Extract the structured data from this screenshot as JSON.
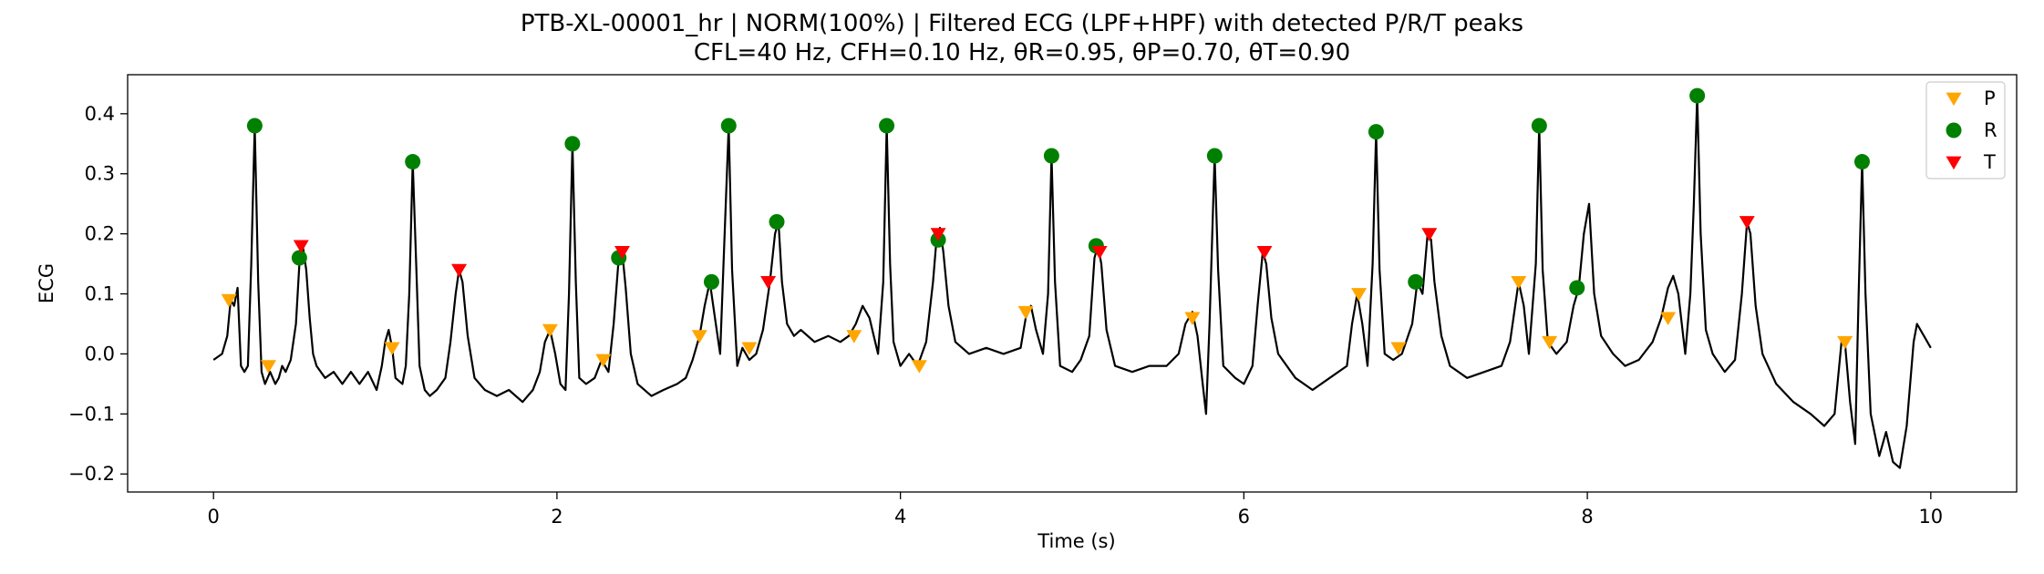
{
  "chart_data": {
    "type": "line",
    "title": "PTB-XL-00001_hr | NORM(100%) | Filtered ECG (LPF+HPF) with detected P/R/T peaks",
    "subtitle": "CFL=40 Hz, CFH=0.10 Hz, θR=0.95, θP=0.70, θT=0.90",
    "xlabel": "Time (s)",
    "ylabel": "ECG",
    "xlim": [
      -0.5,
      10.5
    ],
    "ylim": [
      -0.23,
      0.465
    ],
    "xticks": [
      0,
      2,
      4,
      6,
      8,
      10
    ],
    "yticks": [
      -0.2,
      -0.1,
      0.0,
      0.1,
      0.2,
      0.3,
      0.4
    ],
    "xtick_labels": [
      "0",
      "2",
      "4",
      "6",
      "8",
      "10"
    ],
    "ytick_labels": [
      "−0.2",
      "−0.1",
      "0.0",
      "0.1",
      "0.2",
      "0.3",
      "0.4"
    ],
    "grid": false,
    "legend_position": "top-right",
    "ecg_color": "#000000",
    "ecg": [
      [
        0.0,
        -0.01
      ],
      [
        0.05,
        0.0
      ],
      [
        0.08,
        0.03
      ],
      [
        0.1,
        0.09
      ],
      [
        0.12,
        0.08
      ],
      [
        0.14,
        0.11
      ],
      [
        0.16,
        -0.02
      ],
      [
        0.18,
        -0.03
      ],
      [
        0.2,
        -0.02
      ],
      [
        0.22,
        0.15
      ],
      [
        0.24,
        0.38
      ],
      [
        0.26,
        0.12
      ],
      [
        0.28,
        -0.03
      ],
      [
        0.3,
        -0.05
      ],
      [
        0.33,
        -0.03
      ],
      [
        0.36,
        -0.05
      ],
      [
        0.38,
        -0.04
      ],
      [
        0.4,
        -0.02
      ],
      [
        0.42,
        -0.03
      ],
      [
        0.45,
        -0.01
      ],
      [
        0.48,
        0.05
      ],
      [
        0.5,
        0.15
      ],
      [
        0.52,
        0.18
      ],
      [
        0.54,
        0.14
      ],
      [
        0.56,
        0.06
      ],
      [
        0.58,
        0.0
      ],
      [
        0.6,
        -0.02
      ],
      [
        0.65,
        -0.04
      ],
      [
        0.7,
        -0.03
      ],
      [
        0.75,
        -0.05
      ],
      [
        0.8,
        -0.03
      ],
      [
        0.85,
        -0.05
      ],
      [
        0.9,
        -0.03
      ],
      [
        0.95,
        -0.06
      ],
      [
        0.98,
        -0.02
      ],
      [
        1.0,
        0.02
      ],
      [
        1.02,
        0.04
      ],
      [
        1.04,
        0.01
      ],
      [
        1.06,
        -0.04
      ],
      [
        1.1,
        -0.05
      ],
      [
        1.12,
        -0.02
      ],
      [
        1.14,
        0.1
      ],
      [
        1.16,
        0.32
      ],
      [
        1.18,
        0.15
      ],
      [
        1.2,
        -0.02
      ],
      [
        1.23,
        -0.06
      ],
      [
        1.26,
        -0.07
      ],
      [
        1.3,
        -0.06
      ],
      [
        1.35,
        -0.04
      ],
      [
        1.38,
        0.02
      ],
      [
        1.41,
        0.1
      ],
      [
        1.43,
        0.14
      ],
      [
        1.45,
        0.12
      ],
      [
        1.48,
        0.03
      ],
      [
        1.52,
        -0.04
      ],
      [
        1.58,
        -0.06
      ],
      [
        1.65,
        -0.07
      ],
      [
        1.72,
        -0.06
      ],
      [
        1.8,
        -0.08
      ],
      [
        1.86,
        -0.06
      ],
      [
        1.9,
        -0.03
      ],
      [
        1.93,
        0.02
      ],
      [
        1.96,
        0.04
      ],
      [
        1.99,
        0.0
      ],
      [
        2.02,
        -0.05
      ],
      [
        2.05,
        -0.06
      ],
      [
        2.07,
        0.1
      ],
      [
        2.09,
        0.35
      ],
      [
        2.11,
        0.12
      ],
      [
        2.13,
        -0.04
      ],
      [
        2.17,
        -0.05
      ],
      [
        2.22,
        -0.04
      ],
      [
        2.26,
        -0.01
      ],
      [
        2.3,
        -0.03
      ],
      [
        2.33,
        0.05
      ],
      [
        2.36,
        0.16
      ],
      [
        2.38,
        0.17
      ],
      [
        2.4,
        0.11
      ],
      [
        2.43,
        0.0
      ],
      [
        2.47,
        -0.05
      ],
      [
        2.55,
        -0.07
      ],
      [
        2.62,
        -0.06
      ],
      [
        2.7,
        -0.05
      ],
      [
        2.75,
        -0.04
      ],
      [
        2.79,
        -0.01
      ],
      [
        2.83,
        0.03
      ],
      [
        2.86,
        0.08
      ],
      [
        2.89,
        0.12
      ],
      [
        2.92,
        0.06
      ],
      [
        2.95,
        0.0
      ],
      [
        2.97,
        0.15
      ],
      [
        3.0,
        0.38
      ],
      [
        3.02,
        0.14
      ],
      [
        3.05,
        -0.02
      ],
      [
        3.08,
        0.01
      ],
      [
        3.12,
        -0.01
      ],
      [
        3.16,
        0.0
      ],
      [
        3.2,
        0.04
      ],
      [
        3.24,
        0.12
      ],
      [
        3.27,
        0.2
      ],
      [
        3.29,
        0.22
      ],
      [
        3.31,
        0.12
      ],
      [
        3.34,
        0.05
      ],
      [
        3.38,
        0.03
      ],
      [
        3.42,
        0.04
      ],
      [
        3.5,
        0.02
      ],
      [
        3.58,
        0.03
      ],
      [
        3.65,
        0.02
      ],
      [
        3.7,
        0.03
      ],
      [
        3.74,
        0.05
      ],
      [
        3.78,
        0.08
      ],
      [
        3.82,
        0.06
      ],
      [
        3.87,
        0.0
      ],
      [
        3.9,
        0.12
      ],
      [
        3.92,
        0.38
      ],
      [
        3.94,
        0.15
      ],
      [
        3.96,
        0.02
      ],
      [
        4.0,
        -0.02
      ],
      [
        4.05,
        0.0
      ],
      [
        4.1,
        -0.02
      ],
      [
        4.15,
        0.02
      ],
      [
        4.19,
        0.12
      ],
      [
        4.21,
        0.19
      ],
      [
        4.23,
        0.21
      ],
      [
        4.25,
        0.17
      ],
      [
        4.28,
        0.08
      ],
      [
        4.32,
        0.02
      ],
      [
        4.4,
        0.0
      ],
      [
        4.5,
        0.01
      ],
      [
        4.6,
        0.0
      ],
      [
        4.7,
        0.01
      ],
      [
        4.73,
        0.06
      ],
      [
        4.76,
        0.08
      ],
      [
        4.79,
        0.04
      ],
      [
        4.83,
        0.0
      ],
      [
        4.86,
        0.1
      ],
      [
        4.88,
        0.33
      ],
      [
        4.9,
        0.12
      ],
      [
        4.93,
        -0.02
      ],
      [
        5.0,
        -0.03
      ],
      [
        5.05,
        -0.01
      ],
      [
        5.1,
        0.03
      ],
      [
        5.13,
        0.16
      ],
      [
        5.15,
        0.18
      ],
      [
        5.17,
        0.15
      ],
      [
        5.2,
        0.04
      ],
      [
        5.25,
        -0.02
      ],
      [
        5.35,
        -0.03
      ],
      [
        5.45,
        -0.02
      ],
      [
        5.55,
        -0.02
      ],
      [
        5.62,
        0.0
      ],
      [
        5.66,
        0.05
      ],
      [
        5.7,
        0.07
      ],
      [
        5.73,
        0.03
      ],
      [
        5.76,
        -0.05
      ],
      [
        5.78,
        -0.1
      ],
      [
        5.8,
        0.05
      ],
      [
        5.83,
        0.33
      ],
      [
        5.85,
        0.14
      ],
      [
        5.88,
        -0.02
      ],
      [
        5.95,
        -0.04
      ],
      [
        6.0,
        -0.05
      ],
      [
        6.05,
        -0.02
      ],
      [
        6.08,
        0.08
      ],
      [
        6.11,
        0.17
      ],
      [
        6.13,
        0.15
      ],
      [
        6.16,
        0.06
      ],
      [
        6.2,
        0.0
      ],
      [
        6.3,
        -0.04
      ],
      [
        6.4,
        -0.06
      ],
      [
        6.5,
        -0.04
      ],
      [
        6.6,
        -0.02
      ],
      [
        6.63,
        0.05
      ],
      [
        6.66,
        0.1
      ],
      [
        6.69,
        0.05
      ],
      [
        6.72,
        -0.02
      ],
      [
        6.75,
        0.15
      ],
      [
        6.77,
        0.37
      ],
      [
        6.79,
        0.14
      ],
      [
        6.82,
        0.0
      ],
      [
        6.87,
        -0.01
      ],
      [
        6.92,
        0.0
      ],
      [
        6.98,
        0.05
      ],
      [
        7.01,
        0.12
      ],
      [
        7.04,
        0.1
      ],
      [
        7.07,
        0.2
      ],
      [
        7.09,
        0.19
      ],
      [
        7.11,
        0.12
      ],
      [
        7.15,
        0.03
      ],
      [
        7.2,
        -0.02
      ],
      [
        7.3,
        -0.04
      ],
      [
        7.4,
        -0.03
      ],
      [
        7.5,
        -0.02
      ],
      [
        7.55,
        0.02
      ],
      [
        7.6,
        0.12
      ],
      [
        7.63,
        0.08
      ],
      [
        7.66,
        0.0
      ],
      [
        7.7,
        0.15
      ],
      [
        7.72,
        0.38
      ],
      [
        7.74,
        0.14
      ],
      [
        7.77,
        0.02
      ],
      [
        7.82,
        0.0
      ],
      [
        7.88,
        0.02
      ],
      [
        7.92,
        0.08
      ],
      [
        7.95,
        0.11
      ],
      [
        7.98,
        0.2
      ],
      [
        8.01,
        0.25
      ],
      [
        8.04,
        0.1
      ],
      [
        8.08,
        0.03
      ],
      [
        8.15,
        0.0
      ],
      [
        8.22,
        -0.02
      ],
      [
        8.3,
        -0.01
      ],
      [
        8.38,
        0.02
      ],
      [
        8.43,
        0.06
      ],
      [
        8.47,
        0.11
      ],
      [
        8.5,
        0.13
      ],
      [
        8.53,
        0.1
      ],
      [
        8.57,
        0.0
      ],
      [
        8.6,
        0.1
      ],
      [
        8.62,
        0.25
      ],
      [
        8.64,
        0.43
      ],
      [
        8.66,
        0.2
      ],
      [
        8.69,
        0.04
      ],
      [
        8.73,
        0.0
      ],
      [
        8.8,
        -0.03
      ],
      [
        8.86,
        -0.01
      ],
      [
        8.9,
        0.1
      ],
      [
        8.93,
        0.22
      ],
      [
        8.95,
        0.2
      ],
      [
        8.98,
        0.08
      ],
      [
        9.02,
        0.0
      ],
      [
        9.1,
        -0.05
      ],
      [
        9.2,
        -0.08
      ],
      [
        9.3,
        -0.1
      ],
      [
        9.38,
        -0.12
      ],
      [
        9.44,
        -0.1
      ],
      [
        9.48,
        0.02
      ],
      [
        9.5,
        0.02
      ],
      [
        9.53,
        -0.08
      ],
      [
        9.56,
        -0.15
      ],
      [
        9.58,
        0.1
      ],
      [
        9.6,
        0.32
      ],
      [
        9.62,
        0.1
      ],
      [
        9.65,
        -0.1
      ],
      [
        9.7,
        -0.17
      ],
      [
        9.74,
        -0.13
      ],
      [
        9.78,
        -0.18
      ],
      [
        9.82,
        -0.19
      ],
      [
        9.86,
        -0.12
      ],
      [
        9.9,
        0.02
      ],
      [
        9.92,
        0.05
      ],
      [
        9.96,
        0.03
      ],
      [
        10.0,
        0.01
      ]
    ],
    "series": [
      {
        "name": "P",
        "marker": "triangle-down",
        "color": "#FFA500",
        "x": [
          0.09,
          0.32,
          1.04,
          1.96,
          2.27,
          2.83,
          3.12,
          3.73,
          4.11,
          4.73,
          5.7,
          6.67,
          6.9,
          7.6,
          7.78,
          8.47,
          9.5
        ],
        "y": [
          0.09,
          -0.02,
          0.01,
          0.04,
          -0.01,
          0.03,
          0.01,
          0.03,
          -0.02,
          0.07,
          0.06,
          0.1,
          0.01,
          0.12,
          0.02,
          0.06,
          0.02
        ]
      },
      {
        "name": "R",
        "marker": "circle",
        "color": "#008000",
        "x": [
          0.24,
          0.5,
          1.16,
          2.09,
          2.36,
          2.9,
          3.0,
          3.28,
          3.92,
          4.22,
          4.88,
          5.14,
          5.83,
          6.77,
          7.0,
          7.72,
          7.94,
          8.64,
          9.6
        ],
        "y": [
          0.38,
          0.16,
          0.32,
          0.35,
          0.16,
          0.12,
          0.38,
          0.22,
          0.38,
          0.19,
          0.33,
          0.18,
          0.33,
          0.37,
          0.12,
          0.38,
          0.11,
          0.43,
          0.32
        ]
      },
      {
        "name": "T",
        "marker": "triangle-down",
        "color": "#FF0000",
        "x": [
          0.51,
          1.43,
          2.38,
          3.23,
          4.22,
          5.16,
          6.12,
          7.08,
          8.93
        ],
        "y": [
          0.18,
          0.14,
          0.17,
          0.12,
          0.2,
          0.17,
          0.17,
          0.2,
          0.22
        ]
      }
    ]
  }
}
